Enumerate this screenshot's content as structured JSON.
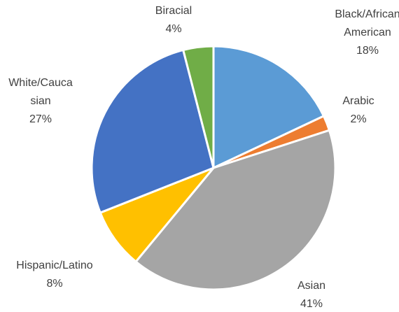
{
  "chart_data": {
    "type": "pie",
    "categories": [
      "Black/African American",
      "Arabic",
      "Asian",
      "Hispanic/Latino",
      "White/Caucasian",
      "Biracial"
    ],
    "values": [
      18,
      2,
      41,
      8,
      27,
      4
    ],
    "value_labels": [
      "18%",
      "2%",
      "41%",
      "8%",
      "27%",
      "4%"
    ],
    "colors": [
      "#5b9bd5",
      "#ed7d31",
      "#a5a5a5",
      "#ffc000",
      "#4472c4",
      "#70ad47"
    ]
  }
}
